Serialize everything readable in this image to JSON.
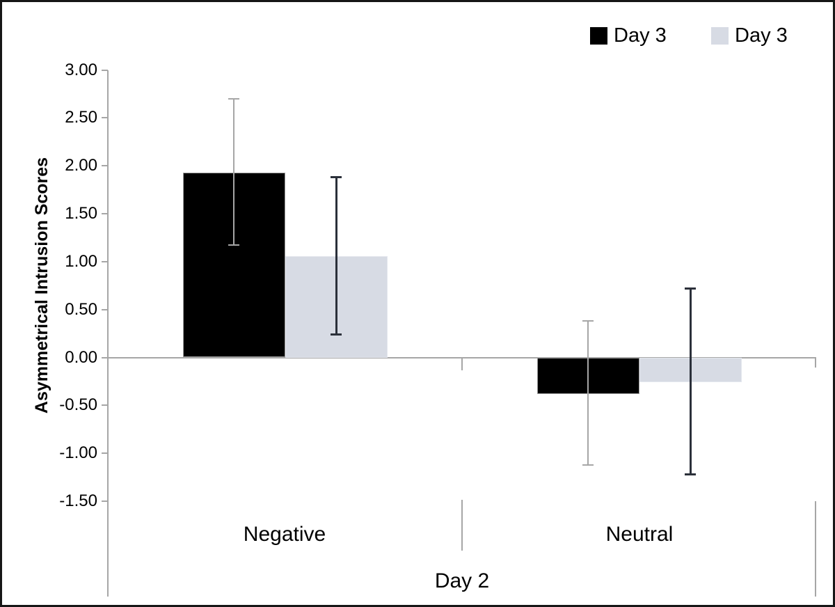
{
  "colors": {
    "axis": "#a6a6a6",
    "text": "#000000",
    "figure_border": "#161616",
    "background": "#ffffff"
  },
  "chart_data": {
    "type": "bar",
    "title": "",
    "ylabel": "Asymmetrical Intrusion Scores",
    "xlabel": "Day 2",
    "categories": [
      "Negative",
      "Neutral"
    ],
    "ylim": [
      -1.5,
      3.0
    ],
    "ytick_step": 0.5,
    "yticks": [
      3.0,
      2.5,
      2.0,
      1.5,
      1.0,
      0.5,
      0.0,
      -0.5,
      -1.0,
      -1.5
    ],
    "ytick_labels": [
      "3.00",
      "2.50",
      "2.00",
      "1.50",
      "1.00",
      "0.50",
      "0.00",
      "-0.50",
      "-1.00",
      "-1.50"
    ],
    "grid": false,
    "legend_position": "top-right",
    "series": [
      {
        "name": "Day 3",
        "fill": "#000000",
        "border": "#9b9b9b",
        "error_color": "#a6a6a6",
        "values": [
          1.93,
          -0.38
        ],
        "error_low": [
          1.17,
          -1.12
        ],
        "error_high": [
          2.7,
          0.38
        ]
      },
      {
        "name": "Day 3",
        "fill": "#d7dbe4",
        "border": "#e4e7ee",
        "error_color": "#2b303a",
        "values": [
          1.06,
          -0.26
        ],
        "error_low": [
          0.24,
          -1.22
        ],
        "error_high": [
          1.88,
          0.72
        ]
      }
    ]
  }
}
